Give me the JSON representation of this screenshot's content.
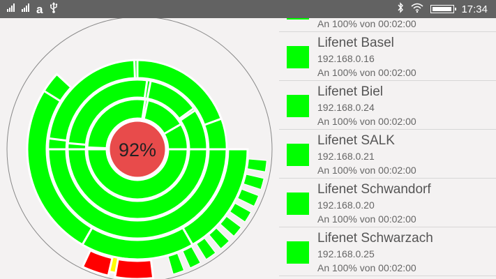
{
  "status_bar": {
    "signal_1_label": "ıll",
    "signal_2_label": "ıll",
    "app_icon_glyph": "a",
    "notification_icons": [
      "signal-icon",
      "signal-icon",
      "amazon-icon",
      "usb-icon"
    ],
    "system_icons": [
      "bluetooth-icon",
      "wifi-icon",
      "battery-icon"
    ],
    "battery_level": 0.95,
    "time": "17:34"
  },
  "sunburst": {
    "center_label": "92%",
    "colors": {
      "ok": "#00ff00",
      "warning": "#ffff00",
      "error": "#ff0000",
      "center": "#e84b4b"
    }
  },
  "devices": [
    {
      "name": "",
      "ip": "",
      "uptime": "An 100% von 00:02:00",
      "status_color": "#00ff00"
    },
    {
      "name": "Lifenet Basel",
      "ip": "192.168.0.16",
      "uptime": "An 100% von 00:02:00",
      "status_color": "#00ff00"
    },
    {
      "name": "Lifenet Biel",
      "ip": "192.168.0.24",
      "uptime": "An 100% von 00:02:00",
      "status_color": "#00ff00"
    },
    {
      "name": "Lifenet SALK",
      "ip": "192.168.0.21",
      "uptime": "An 100% von 00:02:00",
      "status_color": "#00ff00"
    },
    {
      "name": "Lifenet Schwandorf",
      "ip": "192.168.0.20",
      "uptime": "An 100% von 00:02:00",
      "status_color": "#00ff00"
    },
    {
      "name": "Lifenet Schwarzach",
      "ip": "192.168.0.25",
      "uptime": "An 100% von 00:02:00",
      "status_color": "#00ff00"
    }
  ]
}
